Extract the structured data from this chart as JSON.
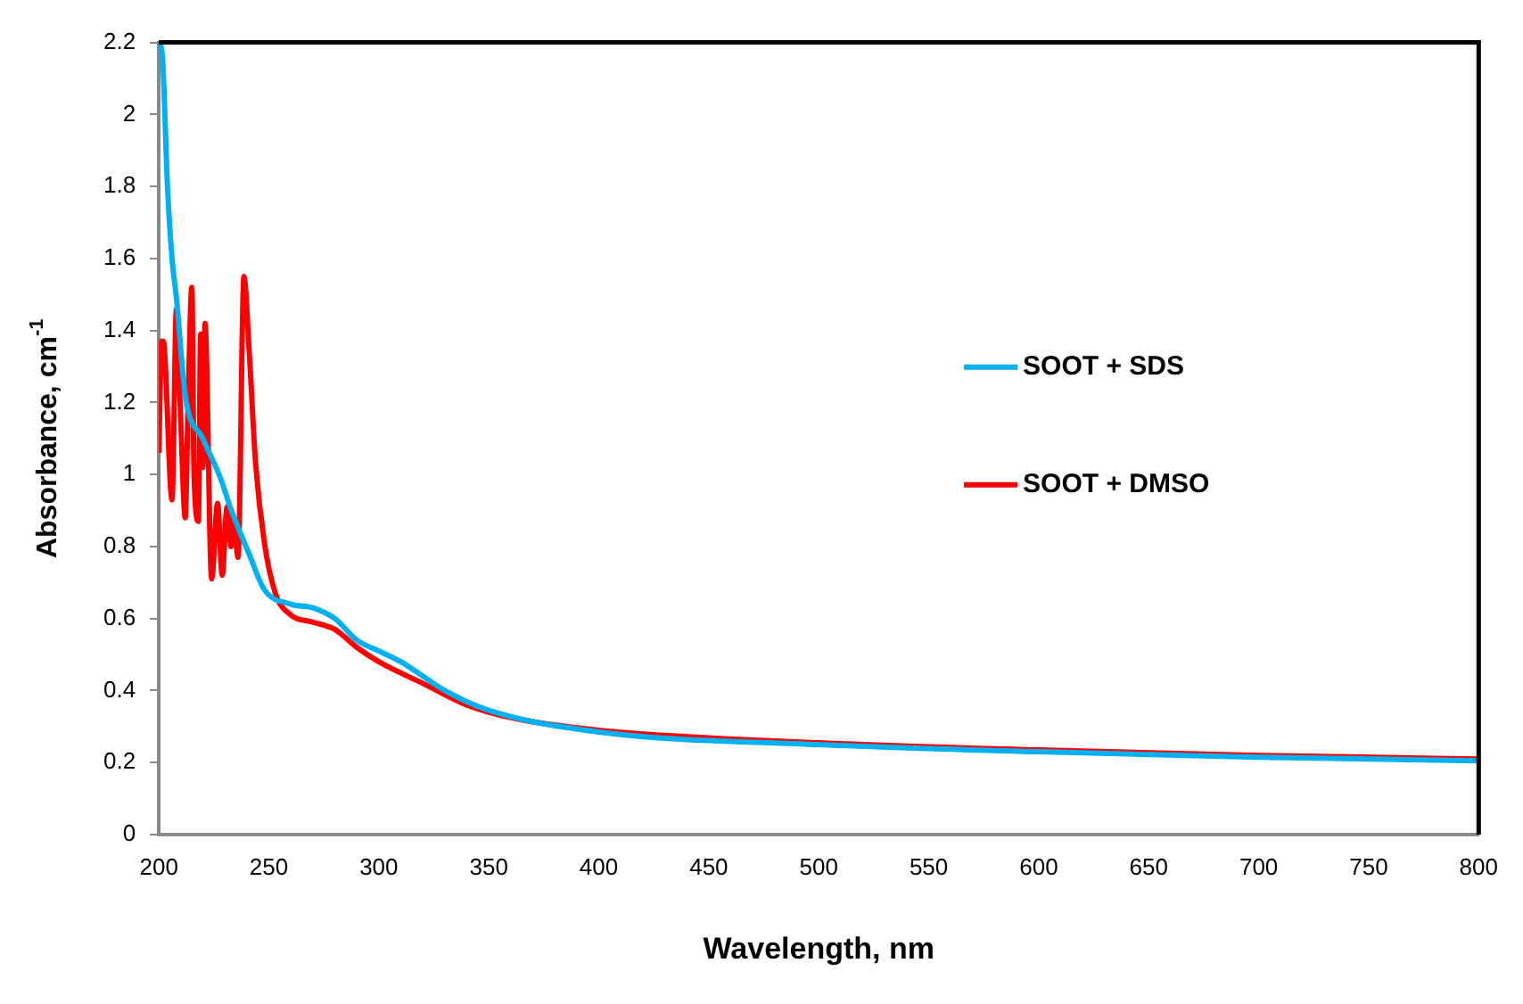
{
  "chart_data": {
    "type": "line",
    "xlabel": "Wavelength, nm",
    "ylabel": "Absorbance, cm$^{-1}$",
    "xlim": [
      200,
      800
    ],
    "xticks": [
      200,
      250,
      300,
      350,
      400,
      450,
      500,
      550,
      600,
      650,
      700,
      750,
      800
    ],
    "ylim": [
      0,
      2.2
    ],
    "yticks": [
      0,
      0.2,
      0.4,
      0.6,
      0.8,
      1,
      1.2,
      1.4,
      1.6,
      1.8,
      2,
      2.2
    ],
    "grid": false,
    "legend": "right",
    "marker": "none",
    "line_style": "solid",
    "series": [
      {
        "name": "SOOT + SDS",
        "color": "#00b0f0",
        "x": [
          200,
          201.5,
          204,
          206,
          208,
          212,
          220,
          228,
          233,
          241,
          248,
          260,
          270,
          280,
          290,
          300,
          310,
          320,
          330,
          350,
          400,
          500,
          600,
          700,
          800
        ],
        "values": [
          2.2,
          2.17,
          1.79,
          1.6,
          1.49,
          1.22,
          1.1,
          0.99,
          0.9,
          0.78,
          0.68,
          0.64,
          0.63,
          0.6,
          0.54,
          0.51,
          0.48,
          0.44,
          0.4,
          0.345,
          0.285,
          0.25,
          0.23,
          0.215,
          0.205
        ]
      },
      {
        "name": "SOOT + DMSO",
        "color": "#ff0000",
        "x": [
          200,
          201.3,
          202,
          206,
          208,
          209.9,
          212,
          213.3,
          215,
          216,
          218,
          219,
          220,
          221,
          224,
          226.7,
          228.8,
          231,
          232.8,
          234,
          236,
          238.7,
          241,
          244,
          248,
          253,
          260,
          270,
          280,
          290,
          300,
          320,
          340,
          360,
          400,
          500,
          600,
          700,
          800
        ],
        "values": [
          1.06,
          1.37,
          1.37,
          0.93,
          1.46,
          1.16,
          0.88,
          1.2,
          1.52,
          1,
          0.87,
          1.39,
          1.02,
          1.42,
          0.71,
          0.92,
          0.72,
          0.91,
          0.8,
          0.88,
          0.77,
          1.55,
          1.35,
          1.03,
          0.81,
          0.67,
          0.61,
          0.59,
          0.57,
          0.52,
          0.48,
          0.42,
          0.36,
          0.325,
          0.29,
          0.255,
          0.235,
          0.22,
          0.21
        ]
      }
    ]
  }
}
